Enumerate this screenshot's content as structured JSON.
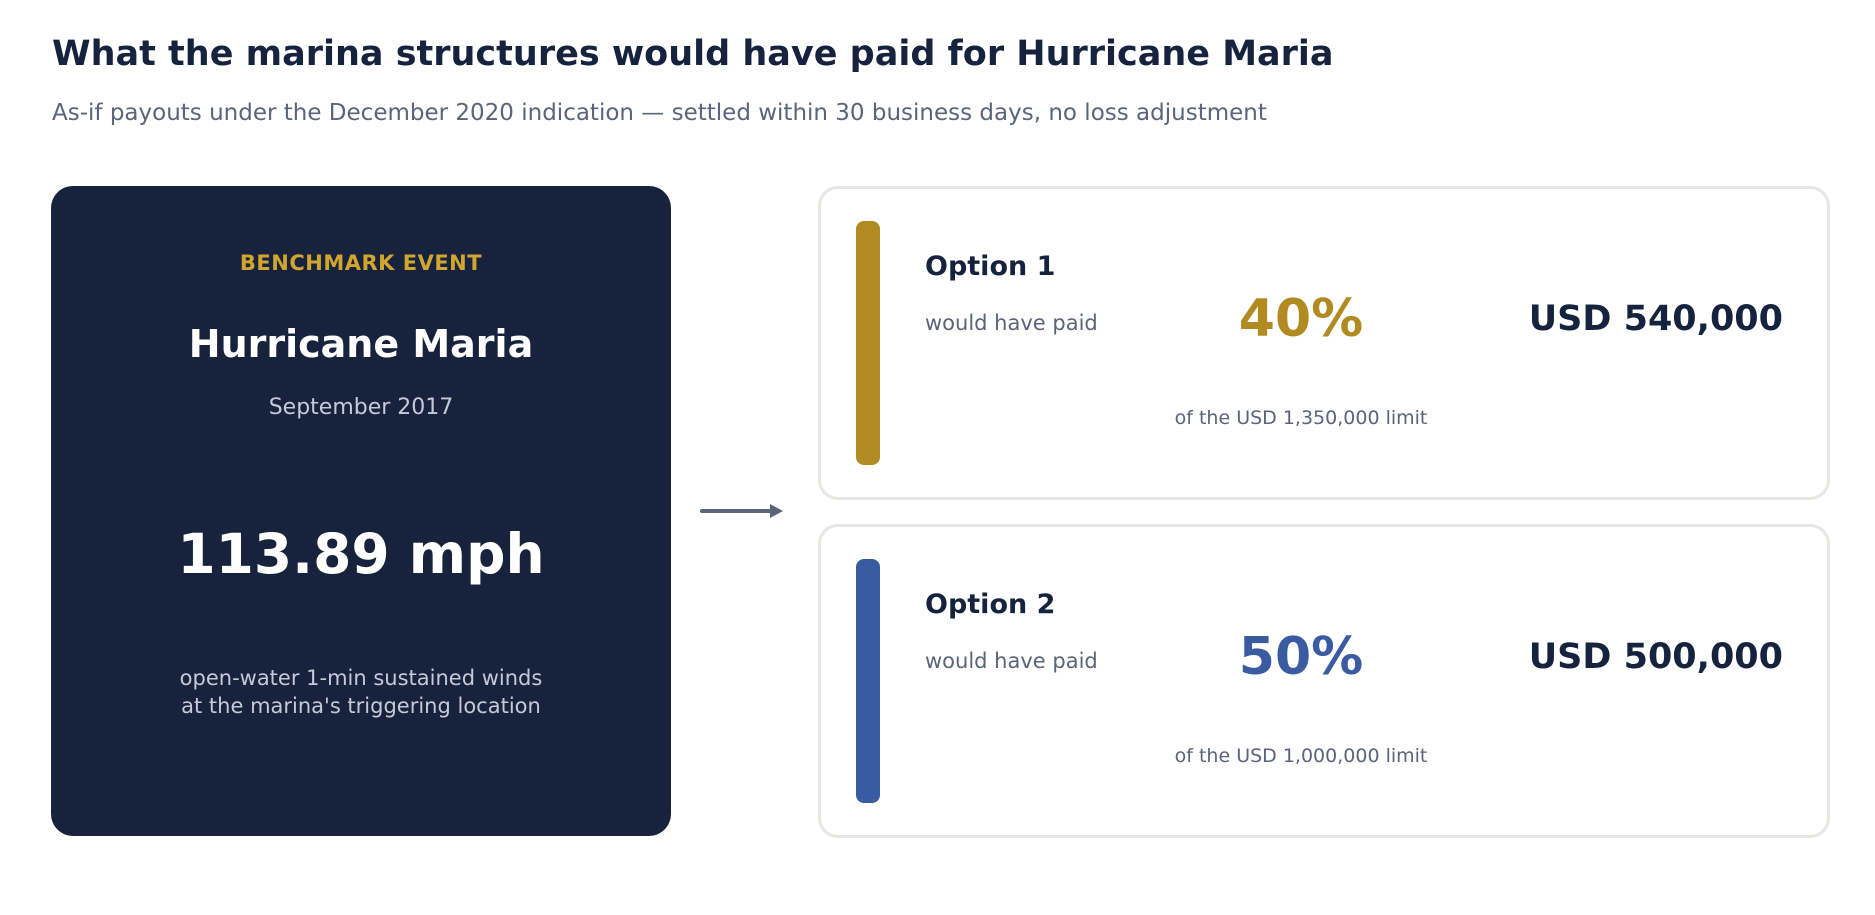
{
  "header": {
    "title": "What the marina structures would have paid for Hurricane Maria",
    "subtitle": "As-if payouts under the December 2020 indication — settled within 30 business days, no loss adjustment"
  },
  "event": {
    "kicker": "BENCHMARK EVENT",
    "name": "Hurricane Maria",
    "date": "September 2017",
    "wind_speed": "113.89 mph",
    "description_line1": "open-water 1-min sustained winds",
    "description_line2": "at the marina's triggering location"
  },
  "options": [
    {
      "name": "Option 1",
      "would_have_paid": "would have paid",
      "percent": "40%",
      "limit_text": "of the USD 1,350,000 limit",
      "amount": "USD 540,000",
      "accent_color": "#b18a22"
    },
    {
      "name": "Option 2",
      "would_have_paid": "would have paid",
      "percent": "50%",
      "limit_text": "of the USD 1,000,000 limit",
      "amount": "USD 500,000",
      "accent_color": "#3b5ba1"
    }
  ],
  "colors": {
    "navy": "#17233d",
    "gold": "#d0a62f",
    "muted_text": "#5b6478",
    "arrow": "#5b6478"
  },
  "icons": {
    "connector": "right-arrow-icon"
  }
}
